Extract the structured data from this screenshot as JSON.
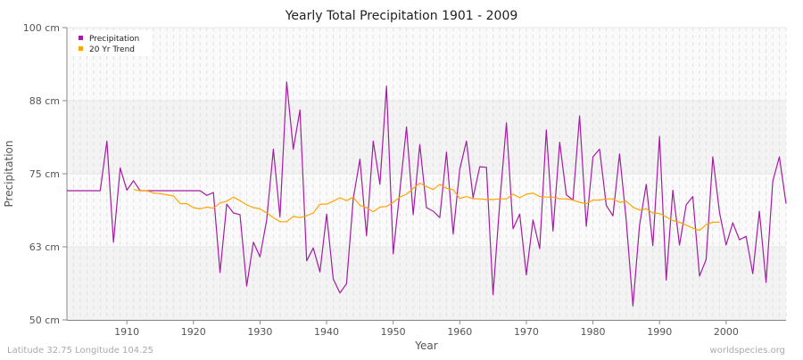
{
  "chart_data": {
    "type": "line",
    "title": "Yearly Total Precipitation 1901 - 2009",
    "xlabel": "Year",
    "ylabel": "Precipitation",
    "xlim": [
      1901,
      2009
    ],
    "ylim": [
      50,
      100
    ],
    "x_ticks": [
      1910,
      1920,
      1930,
      1940,
      1950,
      1960,
      1970,
      1980,
      1990,
      2000
    ],
    "y_ticks": [
      {
        "value": 50,
        "label": "50 cm"
      },
      {
        "value": 62.5,
        "label": "63 cm"
      },
      {
        "value": 75,
        "label": "75 cm"
      },
      {
        "value": 87.5,
        "label": "88 cm"
      },
      {
        "value": 100,
        "label": "100 cm"
      }
    ],
    "grid": true,
    "legend_position": "top-left",
    "series": [
      {
        "name": "Precipitation",
        "color": "#a41ca4",
        "start_year": 1901,
        "values": [
          72.1,
          72.1,
          72.1,
          72.1,
          72.1,
          72.1,
          80.6,
          63.3,
          76.0,
          72.2,
          73.8,
          72.1,
          72.1,
          72.1,
          72.1,
          72.1,
          72.1,
          72.1,
          72.1,
          72.1,
          72.1,
          71.3,
          71.8,
          58.1,
          69.8,
          68.3,
          68.0,
          55.8,
          63.3,
          60.8,
          67.1,
          79.2,
          67.6,
          90.7,
          79.2,
          85.9,
          60.1,
          62.3,
          58.2,
          68.1,
          57.0,
          54.6,
          56.2,
          70.7,
          77.5,
          64.4,
          80.6,
          73.2,
          90.0,
          61.3,
          72.0,
          83.0,
          68.0,
          80.0,
          69.2,
          68.6,
          67.5,
          78.7,
          64.7,
          75.8,
          80.6,
          70.9,
          76.2,
          76.1,
          54.3,
          70.0,
          83.7,
          65.6,
          68.1,
          57.7,
          67.1,
          62.2,
          82.5,
          65.2,
          80.4,
          71.4,
          70.5,
          84.9,
          66.0,
          77.9,
          79.2,
          69.6,
          67.8,
          78.4,
          67.0,
          52.4,
          66.2,
          73.2,
          62.7,
          81.4,
          56.8,
          72.2,
          62.8,
          69.7,
          71.1,
          57.5,
          60.3,
          77.9,
          68.4,
          62.8,
          66.6,
          63.7,
          64.3,
          57.9,
          68.6,
          56.4,
          73.7,
          77.9,
          69.9
        ]
      },
      {
        "name": "20 Yr Trend",
        "color": "#ffa500",
        "start_year": 1911,
        "values": [
          72.3,
          72.1,
          72.1,
          71.7,
          71.6,
          71.4,
          71.2,
          69.9,
          69.9,
          69.2,
          69.0,
          69.3,
          69.1,
          70.0,
          70.3,
          71.0,
          70.4,
          69.7,
          69.2,
          69.0,
          68.3,
          67.5,
          66.8,
          66.8,
          67.7,
          67.5,
          67.8,
          68.3,
          69.8,
          69.8,
          70.3,
          70.9,
          70.4,
          71.0,
          69.6,
          69.2,
          68.5,
          69.3,
          69.4,
          70.1,
          71.0,
          71.5,
          72.5,
          73.4,
          72.8,
          72.3,
          73.2,
          72.5,
          72.3,
          70.8,
          71.1,
          70.7,
          70.7,
          70.6,
          70.6,
          70.7,
          70.7,
          71.5,
          70.9,
          71.5,
          71.7,
          71.1,
          71.0,
          71.0,
          70.7,
          70.7,
          70.5,
          70.1,
          69.9,
          70.5,
          70.5,
          70.7,
          70.7,
          70.1,
          70.3,
          69.3,
          68.8,
          69.0,
          68.3,
          68.2,
          67.6,
          67.0,
          66.7,
          66.2,
          65.7,
          65.3,
          66.3,
          66.7,
          66.7
        ]
      }
    ]
  },
  "footer": {
    "location": "Latitude 32.75 Longitude 104.25",
    "source": "worldspecies.org"
  }
}
